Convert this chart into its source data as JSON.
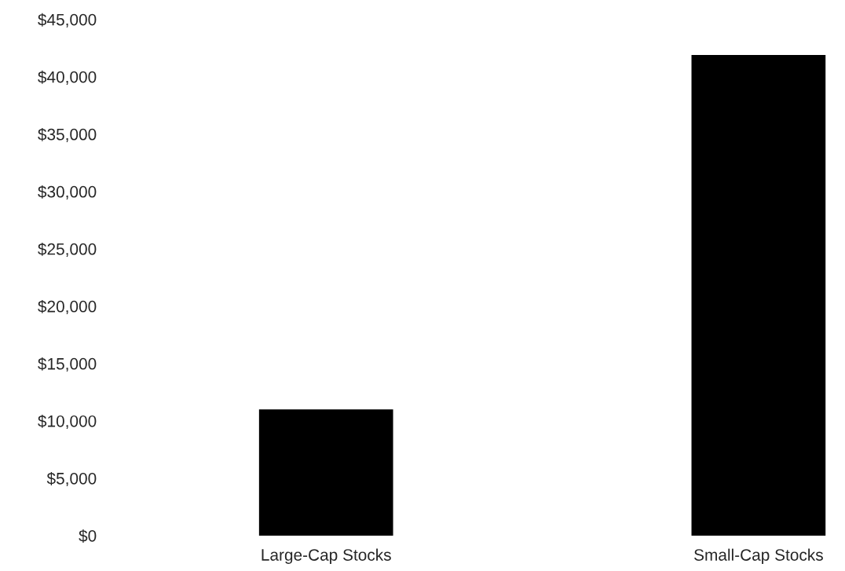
{
  "chart_data": {
    "type": "bar",
    "categories": [
      "Large-Cap Stocks",
      "Small-Cap Stocks"
    ],
    "values": [
      11000,
      41900
    ],
    "color": "#000000",
    "ylim": [
      0,
      45000
    ],
    "yticks": [
      {
        "value": 0,
        "label": "$0"
      },
      {
        "value": 5000,
        "label": "$5,000"
      },
      {
        "value": 10000,
        "label": "$10,000"
      },
      {
        "value": 15000,
        "label": "$15,000"
      },
      {
        "value": 20000,
        "label": "$20,000"
      },
      {
        "value": 25000,
        "label": "$25,000"
      },
      {
        "value": 30000,
        "label": "$30,000"
      },
      {
        "value": 35000,
        "label": "$35,000"
      },
      {
        "value": 40000,
        "label": "$40,000"
      },
      {
        "value": 45000,
        "label": "$45,000"
      }
    ],
    "grid": false,
    "legend": false
  }
}
